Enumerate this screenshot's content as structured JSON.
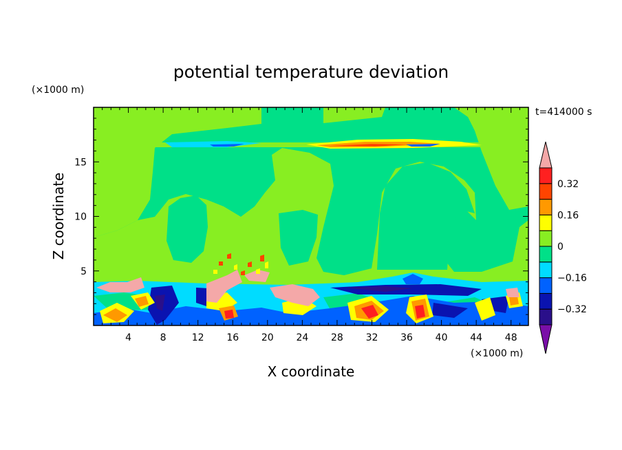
{
  "chart_data": {
    "type": "heatmap",
    "title": "potential temperature deviation",
    "xlabel": "X coordinate",
    "ylabel": "Z coordinate",
    "x_unit": "(×1000 m)",
    "y_unit": "(×1000 m)",
    "time_label": "t=414000 s",
    "xlim": [
      0,
      50
    ],
    "ylim": [
      0,
      20
    ],
    "x_ticks": [
      4,
      8,
      12,
      16,
      20,
      24,
      28,
      32,
      36,
      40,
      44,
      48
    ],
    "y_ticks": [
      5,
      10,
      15
    ],
    "colorbar": {
      "levels": [
        -0.4,
        -0.32,
        -0.24,
        -0.16,
        -0.08,
        0,
        0.08,
        0.16,
        0.24,
        0.32,
        0.4
      ],
      "tick_values": [
        0.32,
        0.16,
        0,
        -0.16,
        -0.32
      ],
      "tick_labels": [
        "0.32",
        "0.16",
        "0",
        "−0.16",
        "−0.32"
      ],
      "colors_low_to_high": [
        "#7a0fa8",
        "#2a0f8a",
        "#0a13b0",
        "#0062ff",
        "#00dcff",
        "#00e088",
        "#88ee22",
        "#ffff00",
        "#ff9900",
        "#ff4400",
        "#ff2020",
        "#f4a8a8"
      ]
    }
  }
}
